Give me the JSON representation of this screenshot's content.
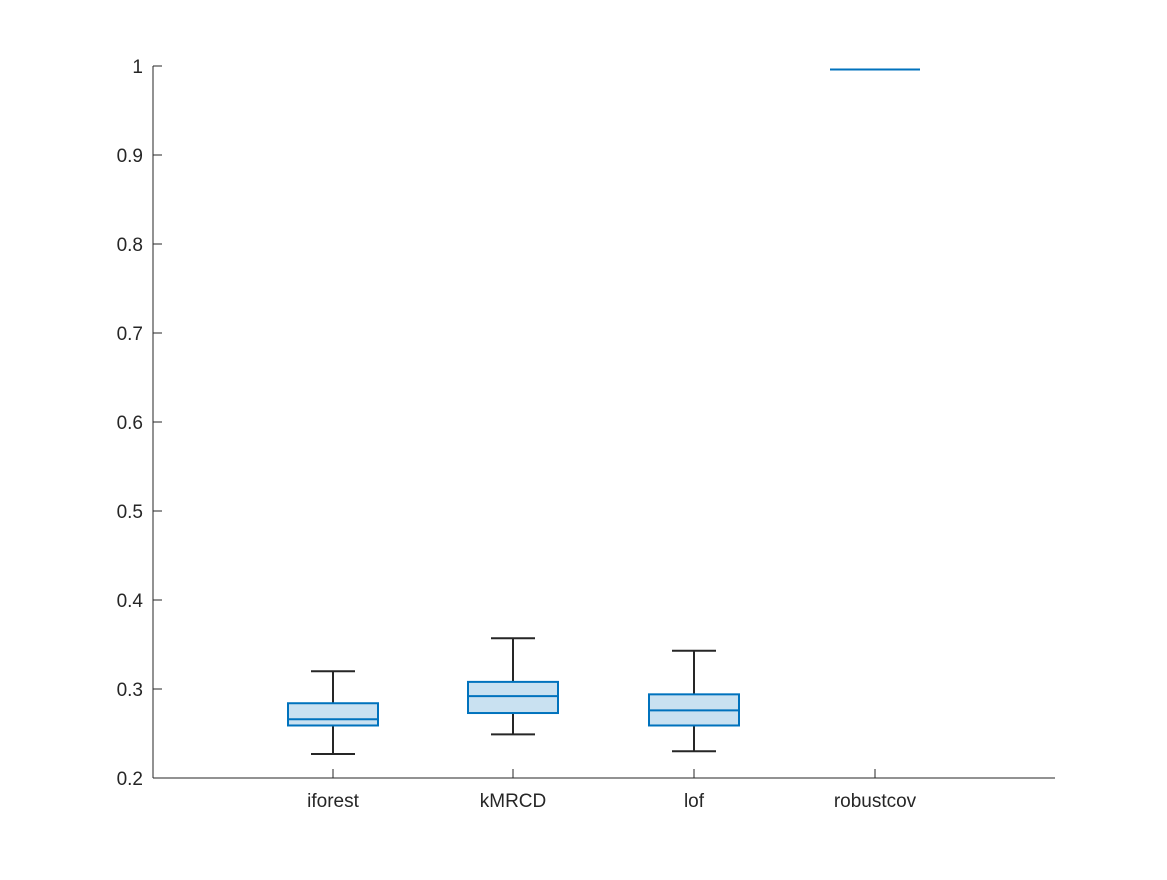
{
  "chart_data": {
    "type": "box",
    "title": "",
    "xlabel": "",
    "ylabel": "",
    "ylim": [
      0.2,
      1.0
    ],
    "yticks": [
      0.2,
      0.3,
      0.4,
      0.5,
      0.6,
      0.7,
      0.8,
      0.9,
      1.0
    ],
    "ytick_labels": [
      "0.2",
      "0.3",
      "0.4",
      "0.5",
      "0.6",
      "0.7",
      "0.8",
      "0.9",
      "1"
    ],
    "grid": false,
    "legend": "none",
    "categories": [
      "iforest",
      "kMRCD",
      "lof",
      "robustcov"
    ],
    "boxes": [
      {
        "category": "iforest",
        "whisker_low": 0.227,
        "q1": 0.259,
        "median": 0.266,
        "q3": 0.284,
        "whisker_high": 0.32
      },
      {
        "category": "kMRCD",
        "whisker_low": 0.249,
        "q1": 0.273,
        "median": 0.292,
        "q3": 0.308,
        "whisker_high": 0.357
      },
      {
        "category": "lof",
        "whisker_low": 0.23,
        "q1": 0.259,
        "median": 0.276,
        "q3": 0.294,
        "whisker_high": 0.343
      },
      {
        "category": "robustcov",
        "whisker_low": 0.996,
        "q1": 0.996,
        "median": 0.996,
        "q3": 0.996,
        "whisker_high": 0.996
      }
    ],
    "colors": {
      "box_edge": "#0072BD",
      "box_fill": "#C9E1F1",
      "median": "#0072BD",
      "whisker": "#262626",
      "axis": "#262626"
    }
  }
}
